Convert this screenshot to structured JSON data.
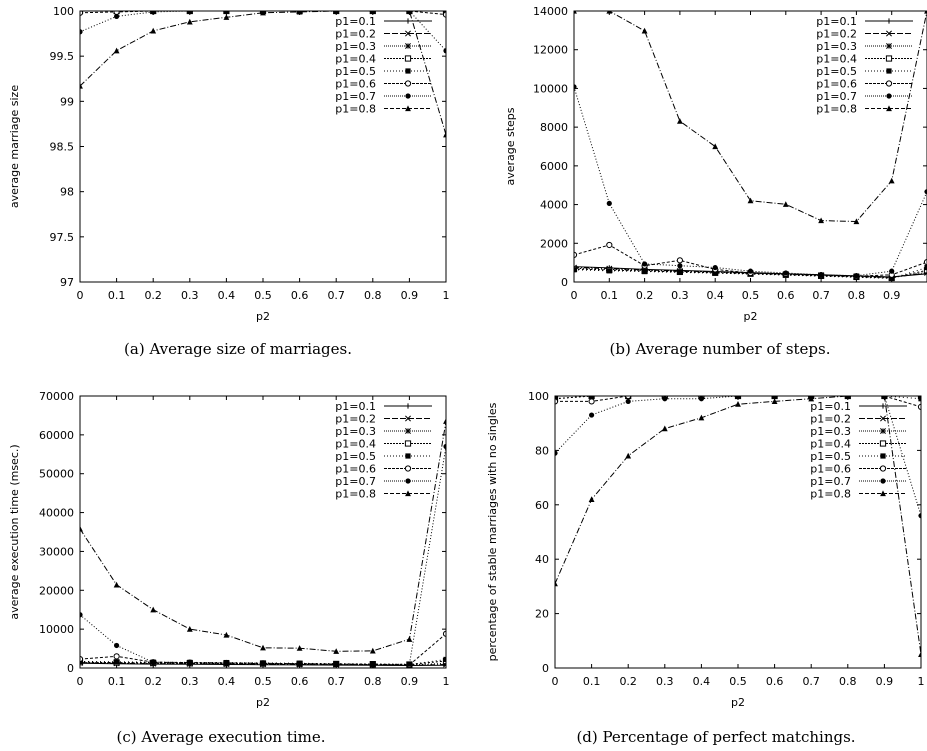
{
  "chart_data": [
    {
      "type": "line",
      "caption": "(a) Average size of marriages.",
      "xlabel": "p2",
      "ylabel": "average marriage size",
      "xlim": [
        0,
        1
      ],
      "ylim": [
        97,
        100
      ],
      "xticks": [
        "0",
        "0.1",
        "0.2",
        "0.3",
        "0.4",
        "0.5",
        "0.6",
        "0.7",
        "0.8",
        "0.9",
        "1"
      ],
      "yticks": [
        "97",
        "97.5",
        "98",
        "98.5",
        "99",
        "99.5",
        "100"
      ],
      "legend_position": "top-right",
      "x": [
        0,
        0.1,
        0.2,
        0.3,
        0.4,
        0.5,
        0.6,
        0.7,
        0.8,
        0.9,
        1
      ],
      "series": [
        {
          "name": "p1=0.1",
          "values": [
            100,
            100,
            100,
            100,
            100,
            100,
            100,
            100,
            100,
            100,
            100
          ]
        },
        {
          "name": "p1=0.2",
          "values": [
            100,
            100,
            100,
            100,
            100,
            100,
            100,
            100,
            100,
            100,
            100
          ]
        },
        {
          "name": "p1=0.3",
          "values": [
            100,
            100,
            100,
            100,
            100,
            100,
            100,
            100,
            100,
            100,
            100
          ]
        },
        {
          "name": "p1=0.4",
          "values": [
            100,
            100,
            100,
            100,
            100,
            100,
            100,
            100,
            100,
            100,
            100
          ]
        },
        {
          "name": "p1=0.5",
          "values": [
            100,
            100,
            100,
            100,
            100,
            100,
            100,
            100,
            100,
            100,
            100
          ]
        },
        {
          "name": "p1=0.6",
          "values": [
            99.98,
            99.99,
            100,
            100,
            100,
            100,
            100,
            100,
            100,
            100,
            99.96
          ]
        },
        {
          "name": "p1=0.7",
          "values": [
            99.77,
            99.94,
            99.99,
            100,
            100,
            100,
            100,
            100,
            100,
            100,
            99.56
          ]
        },
        {
          "name": "p1=0.8",
          "values": [
            99.17,
            99.56,
            99.78,
            99.88,
            99.93,
            99.98,
            99.99,
            100,
            100,
            100,
            98.63
          ]
        }
      ]
    },
    {
      "type": "line",
      "caption": "(b) Average number of steps.",
      "xlabel": "p2",
      "ylabel": "average steps",
      "xlim": [
        0,
        1
      ],
      "ylim": [
        0,
        15000
      ],
      "xticks": [
        "0",
        "0.1",
        "0.2",
        "0.3",
        "0.4",
        "0.5",
        "0.6",
        "0.7",
        "0.8",
        "0.9",
        ""
      ],
      "yticks": [
        "0",
        "2000",
        "4000",
        "6000",
        "8000",
        "10000",
        "12000",
        "14000"
      ],
      "legend_position": "top-right",
      "x": [
        0,
        0.1,
        0.2,
        0.3,
        0.4,
        0.5,
        0.6,
        0.7,
        0.8,
        0.9,
        1
      ],
      "series": [
        {
          "name": "p1=0.1",
          "values": [
            850,
            780,
            700,
            640,
            580,
            520,
            460,
            400,
            340,
            280,
            450
          ]
        },
        {
          "name": "p1=0.2",
          "values": [
            800,
            740,
            670,
            610,
            560,
            500,
            440,
            380,
            320,
            260,
            500
          ]
        },
        {
          "name": "p1=0.3",
          "values": [
            760,
            700,
            640,
            590,
            540,
            480,
            420,
            360,
            300,
            240,
            550
          ]
        },
        {
          "name": "p1=0.4",
          "values": [
            720,
            660,
            610,
            560,
            510,
            460,
            400,
            340,
            280,
            220,
            650
          ]
        },
        {
          "name": "p1=0.5",
          "values": [
            680,
            620,
            580,
            530,
            490,
            440,
            380,
            320,
            260,
            200,
            800
          ]
        },
        {
          "name": "p1=0.6",
          "values": [
            1500,
            2050,
            900,
            1200,
            700,
            500,
            450,
            380,
            320,
            400,
            1100
          ]
        },
        {
          "name": "p1=0.7",
          "values": [
            10800,
            4350,
            1000,
            900,
            800,
            600,
            500,
            400,
            350,
            600,
            5000
          ]
        },
        {
          "name": "p1=0.8",
          "values": [
            15000,
            15000,
            13900,
            8900,
            7500,
            4500,
            4300,
            3400,
            3350,
            5600,
            15000
          ]
        }
      ]
    },
    {
      "type": "line",
      "caption": "(c) Average execution time.",
      "xlabel": "p2",
      "ylabel": "average execution time (msec.)",
      "xlim": [
        0,
        1
      ],
      "ylim": [
        0,
        70000
      ],
      "xticks": [
        "0",
        "0.1",
        "0.2",
        "0.3",
        "0.4",
        "0.5",
        "0.6",
        "0.7",
        "0.8",
        "0.9",
        "1"
      ],
      "yticks": [
        "0",
        "10000",
        "20000",
        "30000",
        "40000",
        "50000",
        "60000",
        "70000"
      ],
      "legend_position": "top-right",
      "x": [
        0,
        0.1,
        0.2,
        0.3,
        0.4,
        0.5,
        0.6,
        0.7,
        0.8,
        0.9,
        1
      ],
      "series": [
        {
          "name": "p1=0.1",
          "values": [
            1200,
            1100,
            1000,
            950,
            900,
            850,
            800,
            750,
            700,
            650,
            700
          ]
        },
        {
          "name": "p1=0.2",
          "values": [
            1300,
            1200,
            1100,
            1050,
            1000,
            950,
            900,
            850,
            800,
            700,
            900
          ]
        },
        {
          "name": "p1=0.3",
          "values": [
            1400,
            1300,
            1200,
            1150,
            1100,
            1050,
            1000,
            950,
            900,
            800,
            1200
          ]
        },
        {
          "name": "p1=0.4",
          "values": [
            1500,
            1400,
            1300,
            1250,
            1200,
            1150,
            1100,
            1050,
            1000,
            900,
            1800
          ]
        },
        {
          "name": "p1=0.5",
          "values": [
            1700,
            1600,
            1500,
            1450,
            1400,
            1300,
            1200,
            1100,
            1000,
            900,
            2200
          ]
        },
        {
          "name": "p1=0.6",
          "values": [
            2300,
            3000,
            1500,
            1400,
            1300,
            1200,
            1100,
            1000,
            900,
            800,
            8800
          ]
        },
        {
          "name": "p1=0.7",
          "values": [
            13700,
            5800,
            1500,
            1400,
            1300,
            1200,
            1100,
            1000,
            900,
            1000,
            57000
          ]
        },
        {
          "name": "p1=0.8",
          "values": [
            35800,
            21400,
            15000,
            10000,
            8500,
            5200,
            5100,
            4300,
            4400,
            7400,
            63500
          ]
        }
      ]
    },
    {
      "type": "line",
      "caption": "(d) Percentage of perfect matchings.",
      "xlabel": "p2",
      "ylabel": "percentage of stable marriages with no singles",
      "xlim": [
        0,
        1
      ],
      "ylim": [
        0,
        100
      ],
      "xticks": [
        "0",
        "0.1",
        "0.2",
        "0.3",
        "0.4",
        "0.5",
        "0.6",
        "0.7",
        "0.8",
        "0.9",
        "1"
      ],
      "yticks": [
        "0",
        "20",
        "40",
        "60",
        "80",
        "100"
      ],
      "legend_position": "top-right",
      "x": [
        0,
        0.1,
        0.2,
        0.3,
        0.4,
        0.5,
        0.6,
        0.7,
        0.8,
        0.9,
        1
      ],
      "series": [
        {
          "name": "p1=0.1",
          "values": [
            100,
            100,
            100,
            100,
            100,
            100,
            100,
            100,
            100,
            100,
            100
          ]
        },
        {
          "name": "p1=0.2",
          "values": [
            100,
            100,
            100,
            100,
            100,
            100,
            100,
            100,
            100,
            100,
            100
          ]
        },
        {
          "name": "p1=0.3",
          "values": [
            100,
            100,
            100,
            100,
            100,
            100,
            100,
            100,
            100,
            100,
            100
          ]
        },
        {
          "name": "p1=0.4",
          "values": [
            99,
            100,
            100,
            100,
            100,
            100,
            100,
            100,
            100,
            100,
            100
          ]
        },
        {
          "name": "p1=0.5",
          "values": [
            99,
            100,
            100,
            100,
            100,
            100,
            100,
            100,
            100,
            100,
            99
          ]
        },
        {
          "name": "p1=0.6",
          "values": [
            98,
            98,
            100,
            100,
            100,
            100,
            100,
            100,
            100,
            100,
            96
          ]
        },
        {
          "name": "p1=0.7",
          "values": [
            79,
            93,
            98,
            99,
            99,
            100,
            100,
            100,
            100,
            100,
            56
          ]
        },
        {
          "name": "p1=0.8",
          "values": [
            31,
            62,
            78,
            88,
            92,
            97,
            98,
            99,
            100,
            100,
            5
          ]
        }
      ]
    }
  ]
}
